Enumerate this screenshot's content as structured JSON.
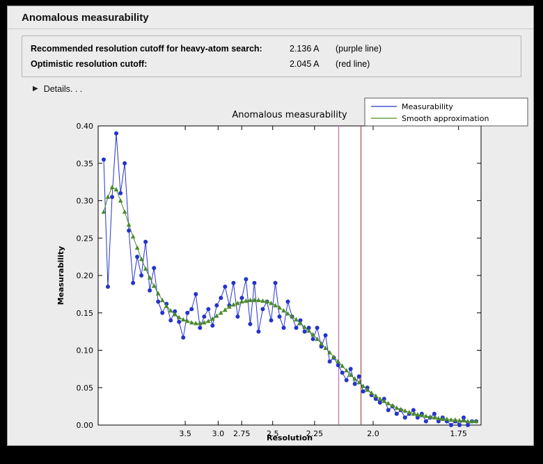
{
  "window": {
    "title": "Anomalous measurability"
  },
  "info_panel": {
    "rows": [
      {
        "label": "Recommended resolution cutoff for heavy-atom search:",
        "value": "2.136 A",
        "note": "(purple line)"
      },
      {
        "label": "Optimistic resolution cutoff:",
        "value": "2.045 A",
        "note": "(red line)"
      }
    ]
  },
  "details": {
    "arrow": "▶",
    "label": "Details. . ."
  },
  "chart_data": {
    "type": "line",
    "title": "Anomalous measurability",
    "xlabel": "Resolution",
    "ylabel": "Measurability",
    "x_scale": "1/d^2",
    "ylim": [
      0.0,
      0.4
    ],
    "y_ticks": [
      0.0,
      0.05,
      0.1,
      0.15,
      0.2,
      0.25,
      0.3,
      0.35,
      0.4
    ],
    "x_ticks_resolution": [
      3.5,
      3.0,
      2.75,
      2.5,
      2.25,
      2.0,
      1.75
    ],
    "x_tick_labels": [
      "3.5",
      "3.0",
      "2.75",
      "2.5",
      "2.25",
      "2.0",
      "1.75"
    ],
    "x_range_s": [
      0.0036,
      0.3467
    ],
    "s_start": 0.0086,
    "s_step": 0.00375,
    "grid": false,
    "legend_position": "top-right",
    "series": [
      {
        "name": "Measurability",
        "color": "#2433cc",
        "marker": "circle",
        "values": [
          0.355,
          0.185,
          0.305,
          0.39,
          0.31,
          0.35,
          0.26,
          0.19,
          0.225,
          0.2,
          0.245,
          0.18,
          0.21,
          0.165,
          0.15,
          0.162,
          0.14,
          0.152,
          0.138,
          0.117,
          0.15,
          0.155,
          0.175,
          0.13,
          0.145,
          0.155,
          0.133,
          0.16,
          0.17,
          0.185,
          0.16,
          0.19,
          0.145,
          0.17,
          0.195,
          0.135,
          0.19,
          0.125,
          0.155,
          0.165,
          0.14,
          0.19,
          0.145,
          0.13,
          0.165,
          0.145,
          0.13,
          0.14,
          0.125,
          0.13,
          0.115,
          0.13,
          0.105,
          0.12,
          0.085,
          0.09,
          0.08,
          0.07,
          0.06,
          0.075,
          0.055,
          0.065,
          0.045,
          0.05,
          0.04,
          0.035,
          0.03,
          0.035,
          0.02,
          0.025,
          0.015,
          0.02,
          0.01,
          0.015,
          0.02,
          0.01,
          0.015,
          0.005,
          0.01,
          0.015,
          0.005,
          0.01,
          0.005,
          0.0,
          0.005,
          0.0,
          0.01,
          0.0,
          0.005,
          0.005
        ]
      },
      {
        "name": "Smooth approximation",
        "color": "#4a8a28",
        "marker": "triangle",
        "values": [
          0.285,
          0.305,
          0.318,
          0.315,
          0.3,
          0.285,
          0.268,
          0.252,
          0.237,
          0.222,
          0.209,
          0.197,
          0.186,
          0.176,
          0.167,
          0.159,
          0.153,
          0.148,
          0.144,
          0.141,
          0.139,
          0.137,
          0.136,
          0.136,
          0.137,
          0.139,
          0.142,
          0.146,
          0.15,
          0.154,
          0.158,
          0.161,
          0.163,
          0.165,
          0.166,
          0.167,
          0.167,
          0.167,
          0.166,
          0.165,
          0.163,
          0.16,
          0.157,
          0.153,
          0.149,
          0.145,
          0.141,
          0.136,
          0.131,
          0.126,
          0.121,
          0.115,
          0.109,
          0.103,
          0.097,
          0.091,
          0.085,
          0.079,
          0.073,
          0.067,
          0.062,
          0.057,
          0.052,
          0.047,
          0.043,
          0.039,
          0.035,
          0.032,
          0.029,
          0.026,
          0.023,
          0.021,
          0.019,
          0.017,
          0.015,
          0.014,
          0.013,
          0.012,
          0.011,
          0.01,
          0.009,
          0.008,
          0.008,
          0.007,
          0.007,
          0.006,
          0.006,
          0.005,
          0.005,
          0.005
        ]
      }
    ],
    "vlines": [
      {
        "name": "purple-cutoff-line",
        "resolution": 2.136,
        "color": "#bb5fbb"
      },
      {
        "name": "red-cutoff-line",
        "resolution": 2.045,
        "color": "#a0402c"
      }
    ],
    "legend_entries": [
      "Measurability",
      "Smooth approximation"
    ]
  }
}
